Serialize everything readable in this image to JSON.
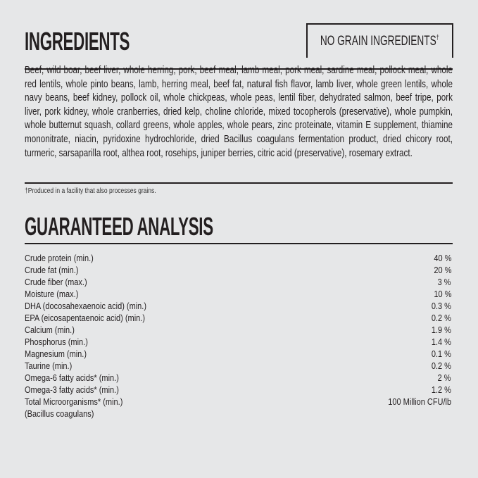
{
  "ingredients": {
    "title": "INGREDIENTS",
    "badge": "NO GRAIN INGREDIENTS",
    "badge_mark": "†",
    "text": "Beef, wild boar, beef liver, whole herring, pork, beef meal, lamb meal, pork meal, sardine meal, pollock meal, whole red lentils, whole pinto beans, lamb, herring meal, beef fat, natural fish flavor, lamb liver, whole green lentils, whole navy beans, beef kidney, pollock oil, whole chickpeas, whole peas, lentil fiber, dehydrated salmon, beef tripe, pork liver, pork kidney, whole cranberries, dried kelp, choline chloride, mixed tocopherols (preservative), whole pumpkin, whole butternut squash, collard greens, whole apples, whole pears, zinc proteinate, vitamin E supplement, thiamine mononitrate, niacin, pyridoxine hydrochloride, dried Bacillus coagulans fermentation product, dried chicory root, turmeric, sarsaparilla root, althea root, rosehips, juniper berries, citric acid (preservative), rosemary extract.",
    "footnote": "†Produced in a facility that also processes grains."
  },
  "analysis": {
    "title": "GUARANTEED ANALYSIS",
    "rows": [
      {
        "label": "Crude protein (min.)",
        "value": "40 %"
      },
      {
        "label": "Crude fat (min.)",
        "value": "20 %"
      },
      {
        "label": "Crude fiber (max.)",
        "value": "3 %"
      },
      {
        "label": "Moisture (max.)",
        "value": "10 %"
      },
      {
        "label": "DHA (docosahexaenoic acid) (min.)",
        "value": "0.3 %"
      },
      {
        "label": "EPA (eicosapentaenoic acid) (min.)",
        "value": "0.2 %"
      },
      {
        "label": "Calcium (min.)",
        "value": "1.9 %"
      },
      {
        "label": "Phosphorus (min.)",
        "value": "1.4 %"
      },
      {
        "label": "Magnesium (min.)",
        "value": "0.1 %"
      },
      {
        "label": "Taurine (min.)",
        "value": "0.2 %"
      },
      {
        "label": "Omega-6 fatty acids* (min.)",
        "value": "2 %"
      },
      {
        "label": "Omega-3 fatty acids* (min.)",
        "value": "1.2 %"
      },
      {
        "label": "Total Microorganisms* (min.)",
        "value": "100 Million CFU/lb"
      },
      {
        "label": "(Bacillus coagulans)",
        "value": ""
      }
    ]
  }
}
